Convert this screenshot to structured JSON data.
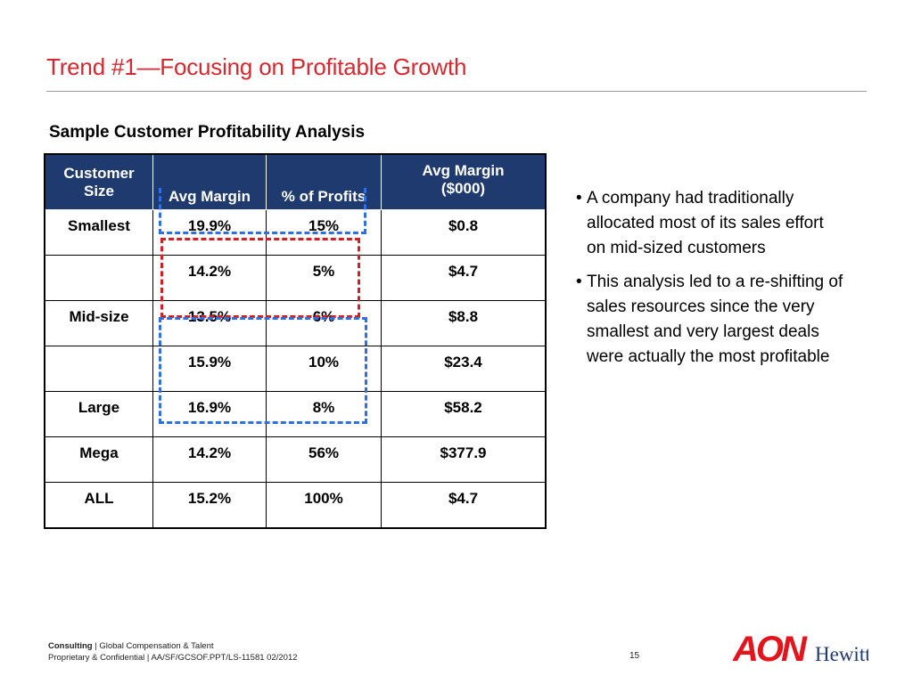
{
  "title": "Trend #1—Focusing on Profitable Growth",
  "subtitle": "Sample Customer Profitability Analysis",
  "table": {
    "headers": [
      "Customer Size",
      "Avg Margin",
      "% of Profits",
      "Avg Margin ($000)"
    ],
    "header_lines": {
      "customer_size": [
        "Customer",
        "Size"
      ],
      "avg_margin_000": [
        "Avg Margin",
        "($000)"
      ]
    },
    "rows": [
      {
        "size": "Smallest",
        "avg_margin": "19.9%",
        "profits": "15%",
        "avg_margin_000": "$0.8"
      },
      {
        "size": "",
        "avg_margin": "14.2%",
        "profits": "5%",
        "avg_margin_000": "$4.7"
      },
      {
        "size": "Mid-size",
        "avg_margin": "13.5%",
        "profits": "6%",
        "avg_margin_000": "$8.8"
      },
      {
        "size": "",
        "avg_margin": "15.9%",
        "profits": "10%",
        "avg_margin_000": "$23.4"
      },
      {
        "size": "Large",
        "avg_margin": "16.9%",
        "profits": "8%",
        "avg_margin_000": "$58.2"
      },
      {
        "size": "Mega",
        "avg_margin": "14.2%",
        "profits": "56%",
        "avg_margin_000": "$377.9"
      },
      {
        "size": "ALL",
        "avg_margin": "15.2%",
        "profits": "100%",
        "avg_margin_000": "$4.7"
      }
    ]
  },
  "bullets": [
    "A company had traditionally allocated most of its sales effort on mid-sized customers",
    "This analysis led to a re-shifting of sales resources since the very smallest and very largest deals were actually the most profitable"
  ],
  "footer": {
    "line1_bold": "Consulting",
    "line1_rest": "|  Global Compensation & Talent",
    "line2": "Proprietary & Confidential   |  AA/SF/GCSOF.PPT/LS-11581  02/2012"
  },
  "page_number": "15",
  "logo": {
    "primary": "AON",
    "secondary": "Hewitt"
  },
  "colors": {
    "title": "#d7282f",
    "header_bg": "#1f3a6e",
    "blue_box": "#2f6fe0",
    "red_box": "#d21f26"
  }
}
